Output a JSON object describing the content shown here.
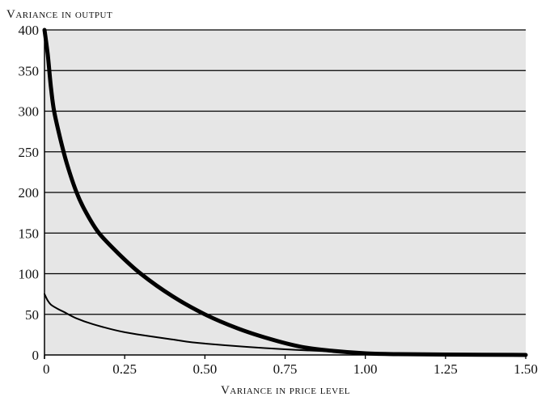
{
  "chart_data": {
    "type": "line",
    "title": "",
    "xlabel": "Variance in price level",
    "ylabel": "Variance in output",
    "xlim": [
      0,
      1.5
    ],
    "ylim": [
      0,
      400
    ],
    "x_ticks": [
      "0",
      "0.25",
      "0.50",
      "0.75",
      "1.00",
      "1.25",
      "1.50"
    ],
    "y_ticks": [
      "0",
      "50",
      "100",
      "150",
      "200",
      "250",
      "300",
      "350",
      "400"
    ],
    "grid": "horizontal",
    "legend": "none",
    "series": [
      {
        "style": "thick",
        "points": [
          [
            0,
            400
          ],
          [
            0.01,
            370
          ],
          [
            0.02,
            330
          ],
          [
            0.03,
            300
          ],
          [
            0.05,
            265
          ],
          [
            0.07,
            235
          ],
          [
            0.1,
            200
          ],
          [
            0.13,
            175
          ],
          [
            0.17,
            150
          ],
          [
            0.23,
            125
          ],
          [
            0.3,
            100
          ],
          [
            0.4,
            72
          ],
          [
            0.5,
            50
          ],
          [
            0.6,
            33
          ],
          [
            0.7,
            20
          ],
          [
            0.8,
            10
          ],
          [
            0.9,
            5
          ],
          [
            1.0,
            2
          ],
          [
            1.1,
            1
          ],
          [
            1.25,
            0.5
          ],
          [
            1.5,
            0
          ]
        ]
      },
      {
        "style": "thin",
        "points": [
          [
            0,
            75
          ],
          [
            0.01,
            67
          ],
          [
            0.02,
            62
          ],
          [
            0.04,
            57
          ],
          [
            0.06,
            53
          ],
          [
            0.1,
            45
          ],
          [
            0.15,
            38
          ],
          [
            0.25,
            28
          ],
          [
            0.4,
            19
          ],
          [
            0.5,
            14
          ],
          [
            0.75,
            7
          ],
          [
            1.0,
            3
          ],
          [
            1.25,
            1
          ],
          [
            1.5,
            0
          ]
        ]
      }
    ],
    "colors": {
      "plot_background": "#e6e6e6",
      "line": "#000000",
      "grid": "#000000"
    }
  }
}
